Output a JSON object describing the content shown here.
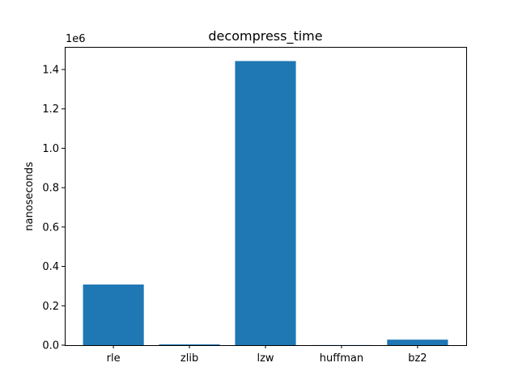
{
  "chart_data": {
    "type": "bar",
    "title": "decompress_time",
    "xlabel": "",
    "ylabel": "nanoseconds",
    "y_scale_label": "1e6",
    "categories": [
      "rle",
      "zlib",
      "lzw",
      "huffman",
      "bz2"
    ],
    "values": [
      308000,
      4000,
      1443000,
      500,
      28000
    ],
    "ylim": [
      0,
      1515000
    ],
    "y_ticks": [
      0,
      200000,
      400000,
      600000,
      800000,
      1000000,
      1200000,
      1400000
    ],
    "y_tick_labels": [
      "0.0",
      "0.2",
      "0.4",
      "0.6",
      "0.8",
      "1.0",
      "1.2",
      "1.4"
    ],
    "grid": false,
    "legend": "none",
    "bar_color": "#1f77b4"
  }
}
